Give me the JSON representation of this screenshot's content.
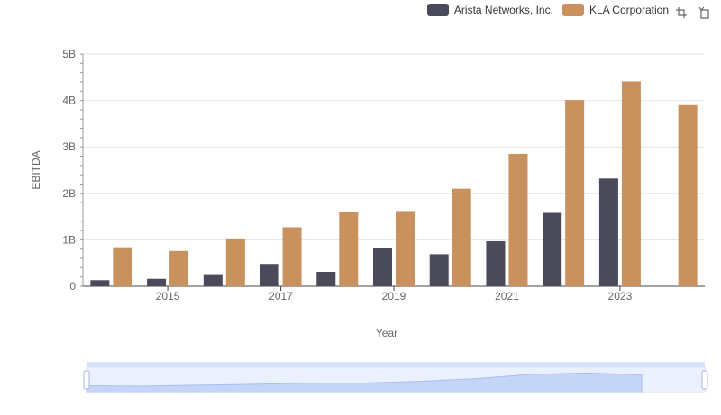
{
  "chart_data": {
    "type": "bar",
    "xlabel": "Year",
    "ylabel": "EBITDA",
    "ylim": [
      0,
      5000000000
    ],
    "yticks": [
      "0",
      "1B",
      "2B",
      "3B",
      "4B",
      "5B"
    ],
    "x_tick_labels": [
      "2015",
      "2017",
      "2019",
      "2021",
      "2023"
    ],
    "categories": [
      "2014",
      "2015",
      "2016",
      "2017",
      "2018",
      "2019",
      "2020",
      "2021",
      "2022",
      "2023",
      "2024"
    ],
    "series": [
      {
        "name": "Arista Networks, Inc.",
        "color": "#4a4a5a",
        "values": [
          130000000,
          160000000,
          260000000,
          480000000,
          310000000,
          820000000,
          690000000,
          970000000,
          1580000000,
          2320000000,
          null
        ]
      },
      {
        "name": "KLA Corporation",
        "color": "#c8915e",
        "values": [
          840000000,
          760000000,
          1030000000,
          1270000000,
          1600000000,
          1620000000,
          2100000000,
          2850000000,
          4010000000,
          4410000000,
          3900000000
        ]
      }
    ],
    "legend_position": "top-right",
    "grid": true
  },
  "toolbox": {
    "zoom_icon": "zoom-select-icon",
    "restore_icon": "restore-icon"
  },
  "slider": {
    "fill_color": "#d8e3fb",
    "line_color": "#a9bdf0",
    "range": [
      0,
      1
    ]
  }
}
